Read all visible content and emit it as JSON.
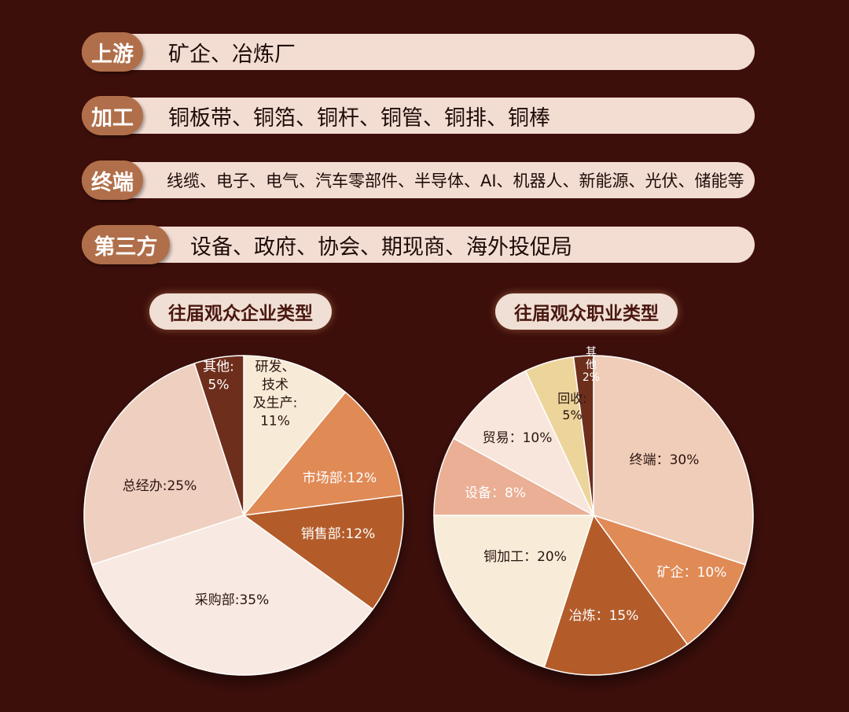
{
  "value_chain": [
    {
      "tag": "上游",
      "text": "矿企、冶炼厂"
    },
    {
      "tag": "加工",
      "text": "铜板带、铜箔、铜杆、铜管、铜排、铜棒"
    },
    {
      "tag": "终端",
      "text": "线缆、电子、电气、汽车零部件、半导体、AI、机器人、新能源、光伏、储能等"
    },
    {
      "tag": "第三方",
      "text": "设备、政府、协会、期现商、海外投促局"
    }
  ],
  "chart_data": [
    {
      "type": "pie",
      "title": "往届观众企业类型",
      "slices": [
        {
          "label": "研发、技术及生产",
          "value": 11,
          "color": "#f7ead6",
          "text_color": "#2a1410",
          "display": [
            "研发、",
            "技术",
            "及生产:",
            "11%"
          ]
        },
        {
          "label": "市场部",
          "value": 12,
          "color": "#e08a56",
          "text_color": "#ffffff",
          "display": [
            "市场部:12%"
          ]
        },
        {
          "label": "销售部",
          "value": 12,
          "color": "#b35c2c",
          "text_color": "#ffffff",
          "display": [
            "销售部:12%"
          ]
        },
        {
          "label": "采购部",
          "value": 35,
          "color": "#f8e9e2",
          "text_color": "#2a1410",
          "display": [
            "采购部:35%"
          ]
        },
        {
          "label": "总经办",
          "value": 25,
          "color": "#efcfbf",
          "text_color": "#2a1410",
          "display": [
            "总经办:25%"
          ]
        },
        {
          "label": "其他",
          "value": 5,
          "color": "#6e2e1a",
          "text_color": "#ffffff",
          "display": [
            "其他:",
            "5%"
          ]
        }
      ]
    },
    {
      "type": "pie",
      "title": "往届观众职业类型",
      "slices": [
        {
          "label": "终端",
          "value": 30,
          "color": "#f0cdb8",
          "text_color": "#2a1410",
          "display": [
            "终端：30%"
          ]
        },
        {
          "label": "矿企",
          "value": 10,
          "color": "#e08a56",
          "text_color": "#ffffff",
          "display": [
            "矿企：10%"
          ]
        },
        {
          "label": "冶炼",
          "value": 15,
          "color": "#b35c2c",
          "text_color": "#ffffff",
          "display": [
            "冶炼：15%"
          ]
        },
        {
          "label": "铜加工",
          "value": 20,
          "color": "#f8ecd8",
          "text_color": "#2a1410",
          "display": [
            "铜加工：20%"
          ]
        },
        {
          "label": "设备",
          "value": 8,
          "color": "#eaaf94",
          "text_color": "#ffffff",
          "display": [
            "设备：8%"
          ]
        },
        {
          "label": "贸易",
          "value": 10,
          "color": "#f8e6dc",
          "text_color": "#2a1410",
          "display": [
            "贸易：10%"
          ]
        },
        {
          "label": "回收",
          "value": 5,
          "color": "#ecd49a",
          "text_color": "#2a1410",
          "display": [
            "回收:",
            "5%"
          ]
        },
        {
          "label": "其他",
          "value": 2,
          "color": "#6e2e1a",
          "text_color": "#ffffff",
          "display": [
            "其",
            "他",
            "2%"
          ]
        }
      ]
    }
  ]
}
